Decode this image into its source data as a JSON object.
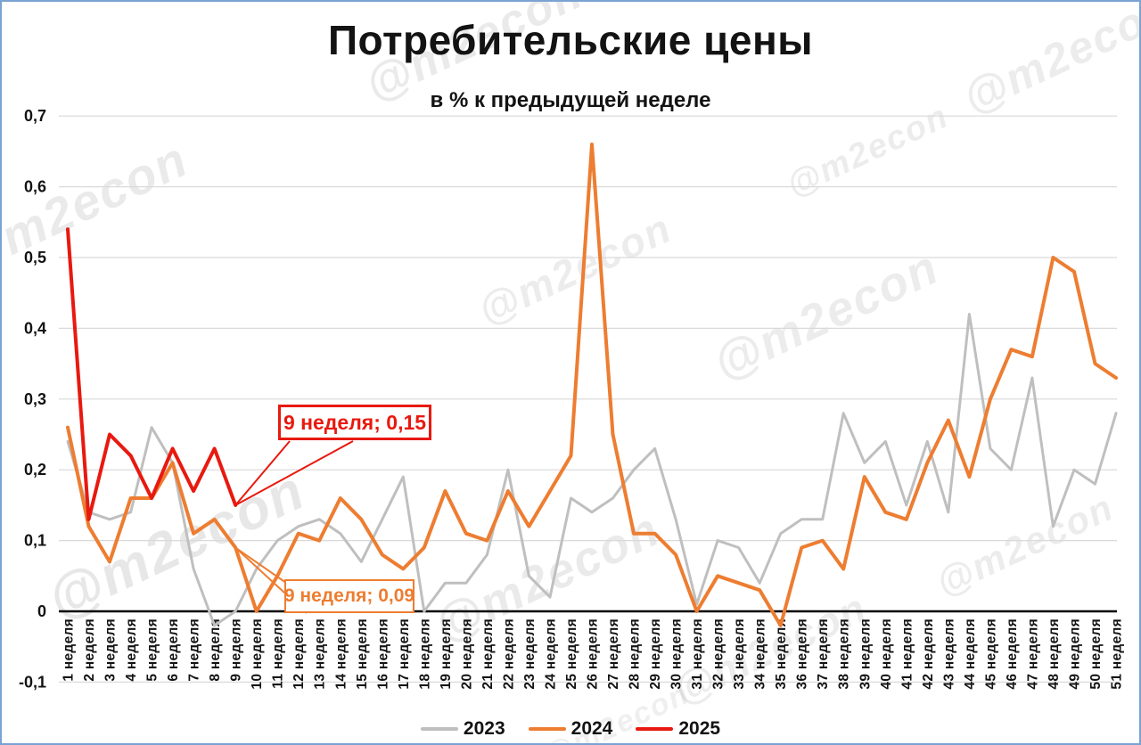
{
  "title": "Потребительские цены",
  "subtitle": "в % к предыдущей неделе",
  "watermark_text": "@m2econ",
  "frame_border_color": "#7aa3d4",
  "legend": [
    {
      "label": "2023",
      "color": "#bfbfbf"
    },
    {
      "label": "2024",
      "color": "#ed7d31"
    },
    {
      "label": "2025",
      "color": "#e8190f"
    }
  ],
  "annotations": [
    {
      "text": "9 неделя; 0,15",
      "series": "2025",
      "week": 9,
      "value": 0.15,
      "color": "#e8190f"
    },
    {
      "text": "9 неделя; 0,09",
      "series": "2024",
      "week": 9,
      "value": 0.09,
      "color": "#ed7d31"
    }
  ],
  "chart_data": {
    "type": "line",
    "title": "Потребительские цены",
    "subtitle": "в % к предыдущей неделе",
    "xlabel": "",
    "ylabel": "",
    "ylim": [
      -0.1,
      0.7
    ],
    "ytick_step": 0.1,
    "ytick_labels_top_to_bottom": [
      "0,7",
      "0,6",
      "0,5",
      "0,4",
      "0,3",
      "0,2",
      "0,1",
      "0",
      "-0,1"
    ],
    "grid": true,
    "legend_position": "bottom",
    "categories": [
      "1 неделя",
      "2 неделя",
      "3 неделя",
      "4 неделя",
      "5 неделя",
      "6 неделя",
      "7 неделя",
      "8 неделя",
      "9 неделя",
      "10 неделя",
      "11 неделя",
      "12 неделя",
      "13 неделя",
      "14 неделя",
      "15 неделя",
      "16 неделя",
      "17 неделя",
      "18 неделя",
      "19 неделя",
      "20 неделя",
      "21 неделя",
      "22 неделя",
      "23 неделя",
      "24 неделя",
      "25 неделя",
      "26 неделя",
      "27 неделя",
      "28 неделя",
      "29 неделя",
      "30 неделя",
      "31 неделя",
      "32 неделя",
      "33 неделя",
      "34 неделя",
      "35 неделя",
      "36 неделя",
      "37 неделя",
      "38 неделя",
      "39 неделя",
      "40 неделя",
      "41 неделя",
      "42 неделя",
      "43 неделя",
      "44 неделя",
      "45 неделя",
      "46 неделя",
      "47 неделя",
      "48 неделя",
      "49 неделя",
      "50 неделя",
      "51 неделя"
    ],
    "series": [
      {
        "name": "2023",
        "color": "#bfbfbf",
        "stroke_width": 3,
        "values": [
          0.24,
          0.14,
          0.13,
          0.14,
          0.26,
          0.21,
          0.06,
          -0.02,
          0.0,
          0.06,
          0.1,
          0.12,
          0.13,
          0.11,
          0.07,
          0.13,
          0.19,
          0.0,
          0.04,
          0.04,
          0.08,
          0.2,
          0.05,
          0.02,
          0.16,
          0.14,
          0.16,
          0.2,
          0.23,
          0.13,
          0.01,
          0.1,
          0.09,
          0.04,
          0.11,
          0.13,
          0.13,
          0.28,
          0.21,
          0.24,
          0.15,
          0.24,
          0.14,
          0.42,
          0.23,
          0.2,
          0.33,
          0.12,
          0.2,
          0.18,
          0.28
        ]
      },
      {
        "name": "2024",
        "color": "#ed7d31",
        "stroke_width": 4,
        "values": [
          0.26,
          0.12,
          0.07,
          0.16,
          0.16,
          0.21,
          0.11,
          0.13,
          0.09,
          0.0,
          0.05,
          0.11,
          0.1,
          0.16,
          0.13,
          0.08,
          0.06,
          0.09,
          0.17,
          0.11,
          0.1,
          0.17,
          0.12,
          0.17,
          0.22,
          0.66,
          0.25,
          0.11,
          0.11,
          0.08,
          0.0,
          0.05,
          0.04,
          0.03,
          -0.02,
          0.09,
          0.1,
          0.06,
          0.19,
          0.14,
          0.13,
          0.21,
          0.27,
          0.19,
          0.3,
          0.37,
          0.36,
          0.5,
          0.48,
          0.35,
          0.33
        ]
      },
      {
        "name": "2025",
        "color": "#e8190f",
        "stroke_width": 4,
        "values": [
          0.54,
          0.13,
          0.25,
          0.22,
          0.16,
          0.23,
          0.17,
          0.23,
          0.15
        ]
      }
    ]
  }
}
